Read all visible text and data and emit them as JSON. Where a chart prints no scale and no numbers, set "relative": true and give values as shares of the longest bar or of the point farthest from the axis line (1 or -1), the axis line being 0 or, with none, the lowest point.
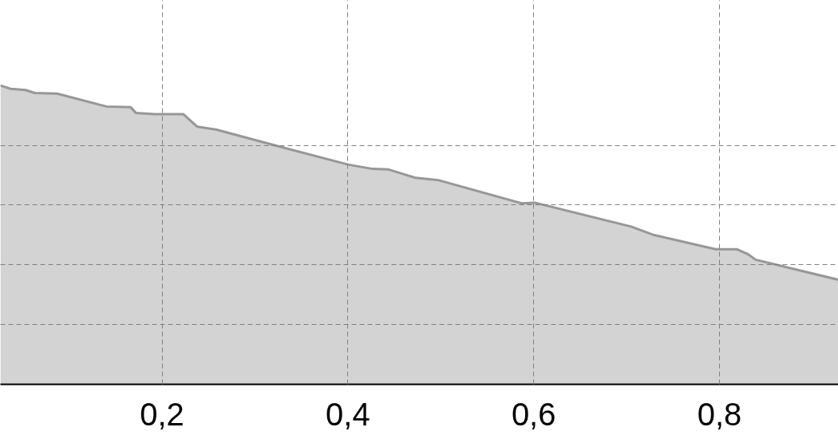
{
  "chart_data": {
    "type": "area",
    "relative": true,
    "x": [
      0.026,
      0.037,
      0.053,
      0.063,
      0.087,
      0.14,
      0.166,
      0.172,
      0.192,
      0.223,
      0.238,
      0.258,
      0.326,
      0.401,
      0.427,
      0.444,
      0.473,
      0.498,
      0.587,
      0.601,
      0.705,
      0.728,
      0.796,
      0.819,
      0.831,
      0.839,
      0.928
    ],
    "values": [
      1.0,
      0.989,
      0.985,
      0.975,
      0.973,
      0.93,
      0.928,
      0.908,
      0.904,
      0.904,
      0.862,
      0.853,
      0.796,
      0.735,
      0.721,
      0.719,
      0.691,
      0.683,
      0.606,
      0.608,
      0.528,
      0.501,
      0.452,
      0.452,
      0.435,
      0.417,
      0.35
    ],
    "color": "#d3d3d3",
    "xlim": [
      0.026,
      0.928
    ],
    "xticks": [
      {
        "value": 0.2,
        "label": "0,2"
      },
      {
        "value": 0.4,
        "label": "0,4"
      },
      {
        "value": 0.6,
        "label": "0,6"
      },
      {
        "value": 0.8,
        "label": "0,8"
      }
    ],
    "grid": true
  }
}
